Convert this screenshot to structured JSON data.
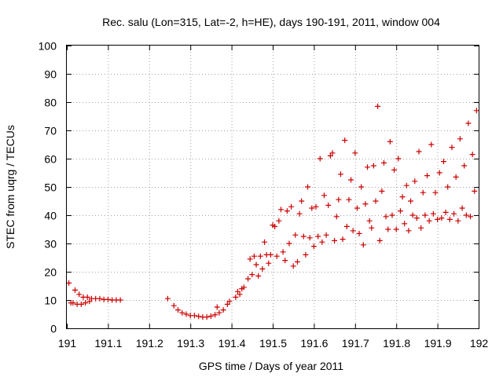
{
  "chart_data": {
    "type": "scatter",
    "title": "Rec. salu (Lon=315, Lat=-2, h=HE), days 190-191, 2011, window 004",
    "xlabel": "GPS time / Days of year 2011",
    "ylabel": "STEC from uqrg / TECUs",
    "xlim": [
      191,
      192
    ],
    "ylim": [
      0,
      100
    ],
    "xticks": [
      "191",
      "191.1",
      "191.2",
      "191.3",
      "191.4",
      "191.5",
      "191.6",
      "191.7",
      "191.8",
      "191.9",
      "192"
    ],
    "yticks": [
      "0",
      "10",
      "20",
      "30",
      "40",
      "50",
      "60",
      "70",
      "80",
      "90",
      "100"
    ],
    "grid": true,
    "marker": "+",
    "color": "#cc0000",
    "series": [
      {
        "points": [
          [
            191.005,
            16
          ],
          [
            191.01,
            9
          ],
          [
            191.015,
            9
          ],
          [
            191.02,
            13.5
          ],
          [
            191.025,
            8.5
          ],
          [
            191.03,
            12
          ],
          [
            191.035,
            8.5
          ],
          [
            191.04,
            11
          ],
          [
            191.045,
            9
          ],
          [
            191.05,
            11
          ],
          [
            191.055,
            9.5
          ],
          [
            191.06,
            10.5
          ],
          [
            191.07,
            10.5
          ],
          [
            191.08,
            10.5
          ],
          [
            191.09,
            10.2
          ],
          [
            191.1,
            10.2
          ],
          [
            191.11,
            10
          ],
          [
            191.12,
            10
          ],
          [
            191.13,
            10
          ],
          [
            191.245,
            10.5
          ],
          [
            191.26,
            8
          ],
          [
            191.27,
            6.5
          ],
          [
            191.28,
            5.5
          ],
          [
            191.29,
            5
          ],
          [
            191.3,
            4.5
          ],
          [
            191.31,
            4.5
          ],
          [
            191.32,
            4.2
          ],
          [
            191.33,
            4
          ],
          [
            191.34,
            4
          ],
          [
            191.35,
            4.3
          ],
          [
            191.36,
            4.8
          ],
          [
            191.365,
            7.5
          ],
          [
            191.37,
            5.5
          ],
          [
            191.38,
            6.5
          ],
          [
            191.39,
            8.5
          ],
          [
            191.395,
            9.5
          ],
          [
            191.41,
            11
          ],
          [
            191.415,
            13
          ],
          [
            191.42,
            12
          ],
          [
            191.425,
            14
          ],
          [
            191.43,
            14.5
          ],
          [
            191.44,
            17.5
          ],
          [
            191.445,
            24.5
          ],
          [
            191.45,
            19
          ],
          [
            191.455,
            25.5
          ],
          [
            191.46,
            22.5
          ],
          [
            191.465,
            18.5
          ],
          [
            191.47,
            25.5
          ],
          [
            191.475,
            21
          ],
          [
            191.48,
            30.5
          ],
          [
            191.485,
            26
          ],
          [
            191.49,
            23
          ],
          [
            191.495,
            26
          ],
          [
            191.5,
            36.5
          ],
          [
            191.505,
            36
          ],
          [
            191.51,
            25.5
          ],
          [
            191.515,
            38
          ],
          [
            191.52,
            42
          ],
          [
            191.525,
            27
          ],
          [
            191.53,
            24
          ],
          [
            191.535,
            41.5
          ],
          [
            191.54,
            30
          ],
          [
            191.545,
            43
          ],
          [
            191.55,
            22
          ],
          [
            191.555,
            33
          ],
          [
            191.56,
            23.5
          ],
          [
            191.565,
            40.5
          ],
          [
            191.57,
            45
          ],
          [
            191.575,
            32.5
          ],
          [
            191.58,
            26
          ],
          [
            191.585,
            50
          ],
          [
            191.59,
            32
          ],
          [
            191.595,
            42.5
          ],
          [
            191.6,
            29
          ],
          [
            191.605,
            43
          ],
          [
            191.61,
            32.5
          ],
          [
            191.615,
            60
          ],
          [
            191.62,
            30.5
          ],
          [
            191.625,
            47
          ],
          [
            191.63,
            33
          ],
          [
            191.635,
            43.5
          ],
          [
            191.64,
            61
          ],
          [
            191.645,
            62
          ],
          [
            191.65,
            31
          ],
          [
            191.655,
            39.5
          ],
          [
            191.66,
            45.5
          ],
          [
            191.665,
            54.5
          ],
          [
            191.67,
            31.5
          ],
          [
            191.675,
            66.5
          ],
          [
            191.68,
            36
          ],
          [
            191.685,
            45.5
          ],
          [
            191.69,
            52.5
          ],
          [
            191.695,
            34.5
          ],
          [
            191.7,
            62
          ],
          [
            191.705,
            42.5
          ],
          [
            191.71,
            33.5
          ],
          [
            191.715,
            50
          ],
          [
            191.72,
            29.5
          ],
          [
            191.725,
            44
          ],
          [
            191.73,
            57
          ],
          [
            191.735,
            38
          ],
          [
            191.74,
            35.5
          ],
          [
            191.745,
            57.5
          ],
          [
            191.75,
            45
          ],
          [
            191.755,
            78.5
          ],
          [
            191.76,
            31
          ],
          [
            191.765,
            48.5
          ],
          [
            191.77,
            58.5
          ],
          [
            191.775,
            39.5
          ],
          [
            191.78,
            35
          ],
          [
            191.785,
            66
          ],
          [
            191.79,
            40
          ],
          [
            191.795,
            56
          ],
          [
            191.8,
            35
          ],
          [
            191.805,
            60
          ],
          [
            191.81,
            41.5
          ],
          [
            191.815,
            46.5
          ],
          [
            191.82,
            37
          ],
          [
            191.825,
            50.5
          ],
          [
            191.83,
            34.5
          ],
          [
            191.835,
            45
          ],
          [
            191.84,
            40
          ],
          [
            191.845,
            52
          ],
          [
            191.85,
            39
          ],
          [
            191.855,
            62.5
          ],
          [
            191.86,
            35.5
          ],
          [
            191.865,
            48
          ],
          [
            191.87,
            40
          ],
          [
            191.875,
            54
          ],
          [
            191.88,
            38
          ],
          [
            191.885,
            65
          ],
          [
            191.89,
            40.5
          ],
          [
            191.895,
            48
          ],
          [
            191.9,
            38.5
          ],
          [
            191.905,
            55
          ],
          [
            191.91,
            39
          ],
          [
            191.915,
            59
          ],
          [
            191.92,
            41
          ],
          [
            191.925,
            50
          ],
          [
            191.93,
            38.5
          ],
          [
            191.935,
            64
          ],
          [
            191.94,
            40.5
          ],
          [
            191.945,
            53.5
          ],
          [
            191.95,
            38
          ],
          [
            191.955,
            67
          ],
          [
            191.96,
            42.5
          ],
          [
            191.965,
            57.5
          ],
          [
            191.97,
            40
          ],
          [
            191.975,
            72.5
          ],
          [
            191.98,
            39.5
          ],
          [
            191.985,
            61.5
          ],
          [
            191.99,
            48.5
          ],
          [
            191.995,
            77
          ]
        ]
      }
    ]
  }
}
